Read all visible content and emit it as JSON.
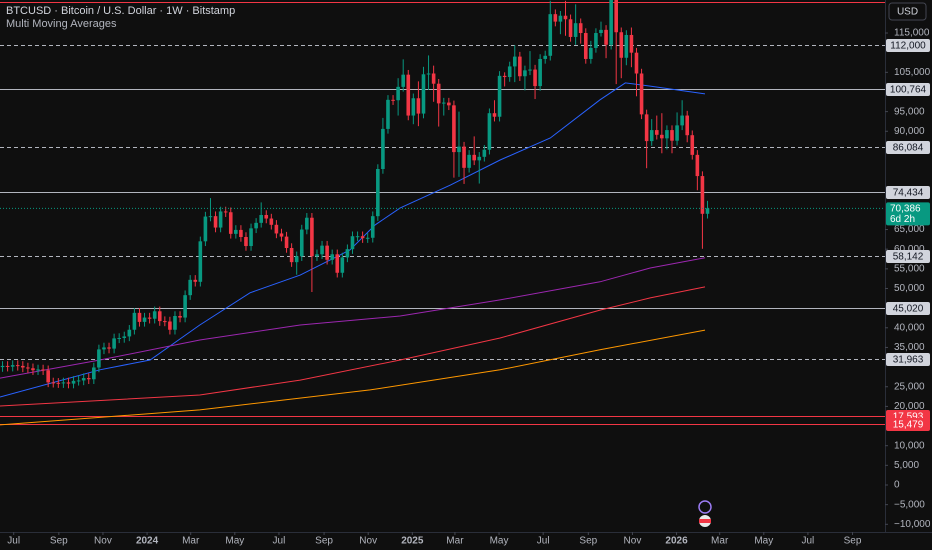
{
  "header": {
    "title": "BTCUSD · Bitcoin / U.S. Dollar · 1W · Bitstamp",
    "indicator": "Multi Moving Averages",
    "currency": "USD"
  },
  "chart_data": {
    "type": "candlestick",
    "up_color": "#089981",
    "down_color": "#f23645",
    "background": "#0f0f0f",
    "grid": false,
    "xlim": [
      0,
      174.5
    ],
    "xticks": [
      {
        "value": 2.7,
        "label": "Jul"
      },
      {
        "value": 11.6,
        "label": "Sep"
      },
      {
        "value": 20.3,
        "label": "Nov"
      },
      {
        "value": 29,
        "label": "2024"
      },
      {
        "value": 37.6,
        "label": "Mar"
      },
      {
        "value": 46.3,
        "label": "May"
      },
      {
        "value": 55,
        "label": "Jul"
      },
      {
        "value": 63.9,
        "label": "Sep"
      },
      {
        "value": 72.6,
        "label": "Nov"
      },
      {
        "value": 81.3,
        "label": "2025"
      },
      {
        "value": 89.7,
        "label": "Mar"
      },
      {
        "value": 98.4,
        "label": "May"
      },
      {
        "value": 107.1,
        "label": "Jul"
      },
      {
        "value": 116,
        "label": "Sep"
      },
      {
        "value": 124.7,
        "label": "Nov"
      },
      {
        "value": 133.4,
        "label": "2026"
      },
      {
        "value": 141.9,
        "label": "Mar"
      },
      {
        "value": 150.6,
        "label": "May"
      },
      {
        "value": 159.3,
        "label": "Jul"
      },
      {
        "value": 168.1,
        "label": "Sep"
      }
    ],
    "ylim": [
      -11960,
      123400
    ],
    "yticks": [
      {
        "value": 115000,
        "label": "115,000"
      },
      {
        "value": 105000,
        "label": "105,000"
      },
      {
        "value": 95000,
        "label": "95,000"
      },
      {
        "value": 90000,
        "label": "90,000"
      },
      {
        "value": 65000,
        "label": "65,000"
      },
      {
        "value": 60000,
        "label": "60,000"
      },
      {
        "value": 55000,
        "label": "55,000"
      },
      {
        "value": 50000,
        "label": "50,000"
      },
      {
        "value": 40000,
        "label": "40,000"
      },
      {
        "value": 35000,
        "label": "35,000"
      },
      {
        "value": 25000,
        "label": "25,000"
      },
      {
        "value": 20000,
        "label": "20,000"
      },
      {
        "value": 10000,
        "label": "10,000"
      },
      {
        "value": 5000,
        "label": "5,000"
      },
      0,
      {
        "value": -5000,
        "label": "−5,000"
      },
      {
        "value": -10000,
        "label": "−10,000"
      }
    ],
    "open": [
      30000,
      30300,
      30100,
      30500,
      30300,
      29900,
      29700,
      29200,
      29400,
      29200,
      26100,
      26000,
      25900,
      26100,
      25800,
      26500,
      26600,
      27200,
      26900,
      29900,
      34500,
      35000,
      34700,
      37300,
      37400,
      37800,
      39500,
      43800,
      41500,
      42600,
      42300,
      44200,
      41700,
      41600,
      39500,
      43000,
      42600,
      48300,
      52200,
      51700,
      62000,
      68300,
      68400,
      65500,
      69600,
      69400,
      63900,
      64900,
      63100,
      60800,
      65300,
      66700,
      68700,
      67800,
      66200,
      64000,
      63200,
      60300,
      56700,
      58200,
      65000,
      68000,
      58200,
      58700,
      60900,
      57300,
      58700,
      54000,
      57900,
      60000,
      63300,
      63300,
      62800,
      62900,
      68400,
      80400,
      90600,
      98000,
      97900,
      101300,
      104400,
      94000,
      98400,
      94500,
      104500,
      104700,
      102100,
      97100,
      97300,
      96600,
      84700,
      86100,
      80700,
      84000,
      82600,
      83500,
      85300,
      94600,
      93700,
      104100,
      103800,
      106500,
      109000,
      104000,
      105500,
      105700,
      101500,
      108400,
      109200,
      119800,
      117900,
      119400,
      118500,
      114000,
      117500,
      115000,
      108400,
      111200,
      115000,
      115800,
      112000,
      123500,
      115200,
      108700,
      114500,
      110000,
      104700,
      94300,
      87500,
      90300,
      89100,
      88200,
      90300,
      87600,
      91500,
      94000,
      89000,
      84000,
      78600,
      69000
    ],
    "high": [
      31500,
      31500,
      31700,
      31700,
      31500,
      31100,
      30900,
      30600,
      30600,
      30400,
      27300,
      27200,
      27300,
      27300,
      27700,
      27800,
      28400,
      28400,
      31100,
      35700,
      36200,
      36200,
      38500,
      38600,
      39000,
      40700,
      45000,
      45000,
      43800,
      43800,
      45400,
      45400,
      42900,
      42800,
      44200,
      44200,
      49500,
      53400,
      53400,
      63200,
      69500,
      73000,
      69600,
      70800,
      70800,
      70600,
      66100,
      66100,
      64300,
      66500,
      67900,
      71900,
      69900,
      69000,
      67400,
      65200,
      64400,
      61500,
      59400,
      66200,
      69200,
      69200,
      59900,
      62100,
      62100,
      59900,
      59900,
      59100,
      61200,
      64500,
      64500,
      64500,
      64100,
      69600,
      81600,
      93400,
      99200,
      99200,
      103500,
      108300,
      105600,
      99600,
      102700,
      106400,
      109300,
      106700,
      103300,
      98500,
      98500,
      97800,
      95000,
      87300,
      85200,
      88700,
      84700,
      86500,
      95800,
      97900,
      105300,
      105000,
      107700,
      111900,
      110200,
      106700,
      110400,
      106900,
      109600,
      110500,
      123200,
      121000,
      120600,
      123200,
      119700,
      122300,
      118700,
      116200,
      113000,
      116200,
      117900,
      117000,
      126200,
      124700,
      116400,
      115700,
      116400,
      111200,
      105900,
      95500,
      93100,
      94000,
      94600,
      91500,
      91500,
      94800,
      97900,
      95200,
      90200,
      85200,
      79800,
      72300
    ],
    "low": [
      28800,
      28900,
      28900,
      29100,
      28700,
      28500,
      28000,
      28000,
      28000,
      24900,
      24800,
      24700,
      24700,
      24600,
      24600,
      25300,
      25400,
      25700,
      25700,
      28700,
      33300,
      33500,
      33500,
      36100,
      36200,
      36600,
      38300,
      40300,
      40300,
      41100,
      41100,
      40500,
      40400,
      38300,
      38300,
      41400,
      41400,
      47100,
      50500,
      50500,
      60800,
      67100,
      64300,
      64300,
      68200,
      62700,
      62700,
      61900,
      59600,
      59600,
      64100,
      65500,
      66600,
      65000,
      62800,
      62000,
      59100,
      55500,
      53500,
      57000,
      63800,
      49100,
      57000,
      57500,
      56100,
      56100,
      52800,
      52800,
      56700,
      58800,
      62100,
      61600,
      61600,
      61700,
      67200,
      79200,
      89400,
      96700,
      94000,
      100100,
      92800,
      91800,
      91300,
      93300,
      100500,
      97500,
      91200,
      94000,
      95400,
      78200,
      78400,
      76600,
      79500,
      81400,
      76700,
      82300,
      84100,
      92500,
      92500,
      101400,
      102600,
      102500,
      102800,
      100400,
      104300,
      98200,
      100300,
      107200,
      108000,
      116700,
      114700,
      114300,
      112800,
      112000,
      112300,
      107200,
      107200,
      110000,
      114100,
      108600,
      110800,
      102000,
      103500,
      106800,
      106300,
      98900,
      93100,
      80600,
      86300,
      87900,
      84400,
      85400,
      84400,
      86400,
      90300,
      87200,
      82800,
      75000,
      60100,
      67800
    ],
    "close": [
      30300,
      30100,
      30500,
      30300,
      29900,
      29700,
      29200,
      29400,
      29200,
      26100,
      26000,
      25900,
      26100,
      25800,
      26500,
      26600,
      27200,
      26900,
      29900,
      34500,
      35000,
      34700,
      37300,
      37400,
      37800,
      39500,
      43800,
      41500,
      42600,
      42300,
      44200,
      41700,
      41600,
      39500,
      43000,
      42600,
      48300,
      52200,
      51700,
      62000,
      68300,
      68400,
      65500,
      69600,
      69400,
      63900,
      64900,
      63100,
      60800,
      65300,
      66700,
      68700,
      67800,
      66200,
      64000,
      63200,
      60300,
      56700,
      58200,
      65000,
      68000,
      58200,
      58700,
      60900,
      57300,
      58700,
      54000,
      57900,
      60000,
      63300,
      63300,
      62800,
      62900,
      68400,
      80400,
      90600,
      98000,
      97900,
      101300,
      104400,
      94000,
      98400,
      94500,
      104500,
      104700,
      102100,
      97100,
      97300,
      96600,
      84700,
      86100,
      80700,
      84000,
      82600,
      83500,
      85300,
      94600,
      93700,
      104100,
      103800,
      106500,
      109000,
      104000,
      105500,
      105700,
      101500,
      108400,
      109200,
      119800,
      117900,
      119400,
      118500,
      114000,
      117500,
      115000,
      108400,
      111200,
      115000,
      115800,
      112000,
      123500,
      115200,
      108700,
      114500,
      110000,
      104700,
      94300,
      87500,
      90300,
      89100,
      88200,
      90300,
      87600,
      91500,
      94000,
      89000,
      84000,
      78600,
      69000,
      70386
    ],
    "moving_averages": [
      {
        "color": "#2962ff",
        "x": [
          0,
          19.7,
          29.6,
          39.4,
          49.3,
          59.2,
          69,
          74,
          78.9,
          88.8,
          98.6,
          108.5,
          118.3,
          123.3,
          128.2,
          139
        ],
        "values": [
          22400,
          29300,
          31800,
          40700,
          48900,
          53400,
          59800,
          66200,
          70500,
          76300,
          82700,
          88300,
          98000,
          102300,
          101500,
          99500
        ]
      },
      {
        "color": "#9c27b0",
        "x": [
          0,
          19.7,
          39.4,
          59.2,
          78.9,
          98.6,
          118.3,
          128.2,
          139
        ],
        "values": [
          27200,
          31800,
          36900,
          40700,
          43000,
          47100,
          51700,
          55200,
          57800
        ]
      },
      {
        "color": "#f23645",
        "x": [
          0,
          39.4,
          59.2,
          78.9,
          98.6,
          118.3,
          128.2,
          139
        ],
        "values": [
          20100,
          22900,
          26700,
          31800,
          37400,
          44500,
          47600,
          50400
        ]
      },
      {
        "color": "#ff9800",
        "x": [
          0,
          39.4,
          73,
          98.6,
          118.3,
          139
        ],
        "values": [
          15300,
          19100,
          24200,
          29300,
          34400,
          39400
        ]
      }
    ],
    "levels": [
      {
        "value": 123000,
        "color": "#f23645",
        "style": "solid"
      },
      {
        "value": 112000,
        "label": "112,000",
        "color": "#b2b5be",
        "style": "dashed"
      },
      {
        "value": 100764,
        "label": "100,764",
        "color": "#b2b5be",
        "style": "solid"
      },
      {
        "value": 86084,
        "label": "86,084",
        "color": "#b2b5be",
        "style": "dashed"
      },
      {
        "value": 74434,
        "label": "74,434",
        "color": "#b2b5be",
        "style": "solid"
      },
      {
        "value": 58142,
        "label": "58,142",
        "color": "#b2b5be",
        "style": "dashed"
      },
      {
        "value": 45020,
        "label": "45,020",
        "color": "#b2b5be",
        "style": "solid"
      },
      {
        "value": 31963,
        "label": "31,963",
        "color": "#b2b5be",
        "style": "dashed"
      },
      {
        "value": 17593,
        "label": "17,593",
        "color": "#f23645",
        "style": "solid"
      },
      {
        "value": 15479,
        "label": "15,479",
        "color": "#f23645",
        "style": "solid"
      }
    ],
    "last_price": {
      "value": 70386,
      "label": "70,386",
      "countdown": "6d 2h",
      "color": "#089981"
    }
  }
}
